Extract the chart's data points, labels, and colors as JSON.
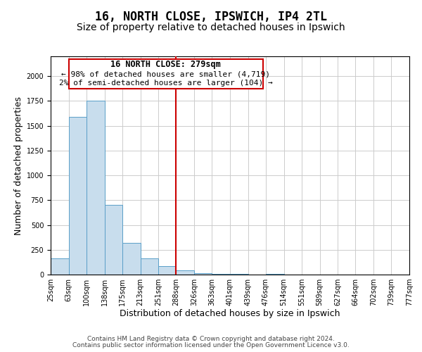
{
  "title": "16, NORTH CLOSE, IPSWICH, IP4 2TL",
  "subtitle": "Size of property relative to detached houses in Ipswich",
  "xlabel": "Distribution of detached houses by size in Ipswich",
  "ylabel": "Number of detached properties",
  "footer_lines": [
    "Contains HM Land Registry data © Crown copyright and database right 2024.",
    "Contains public sector information licensed under the Open Government Licence v3.0."
  ],
  "bin_edges": [
    25,
    63,
    100,
    138,
    175,
    213,
    251,
    288,
    326,
    363,
    401,
    439,
    476,
    514,
    551,
    589,
    627,
    664,
    702,
    739,
    777
  ],
  "bin_counts": [
    160,
    1590,
    1750,
    700,
    320,
    160,
    85,
    40,
    15,
    5,
    5,
    0,
    5,
    0,
    0,
    0,
    0,
    0,
    0,
    0
  ],
  "bar_color": "#c8dded",
  "bar_edge_color": "#5a9fc8",
  "vline_x": 288,
  "vline_color": "#cc0000",
  "ann_line1": "16 NORTH CLOSE: 279sqm",
  "ann_line2": "← 98% of detached houses are smaller (4,719)",
  "ann_line3": "2% of semi-detached houses are larger (104) →",
  "ylim": [
    0,
    2200
  ],
  "xlim": [
    25,
    777
  ],
  "tick_labels": [
    "25sqm",
    "63sqm",
    "100sqm",
    "138sqm",
    "175sqm",
    "213sqm",
    "251sqm",
    "288sqm",
    "326sqm",
    "363sqm",
    "401sqm",
    "439sqm",
    "476sqm",
    "514sqm",
    "551sqm",
    "589sqm",
    "627sqm",
    "664sqm",
    "702sqm",
    "739sqm",
    "777sqm"
  ],
  "grid_color": "#cccccc",
  "background_color": "#ffffff",
  "title_fontsize": 12,
  "subtitle_fontsize": 10,
  "axis_label_fontsize": 9,
  "tick_fontsize": 7,
  "annotation_fontsize": 8.5,
  "footer_fontsize": 6.5
}
